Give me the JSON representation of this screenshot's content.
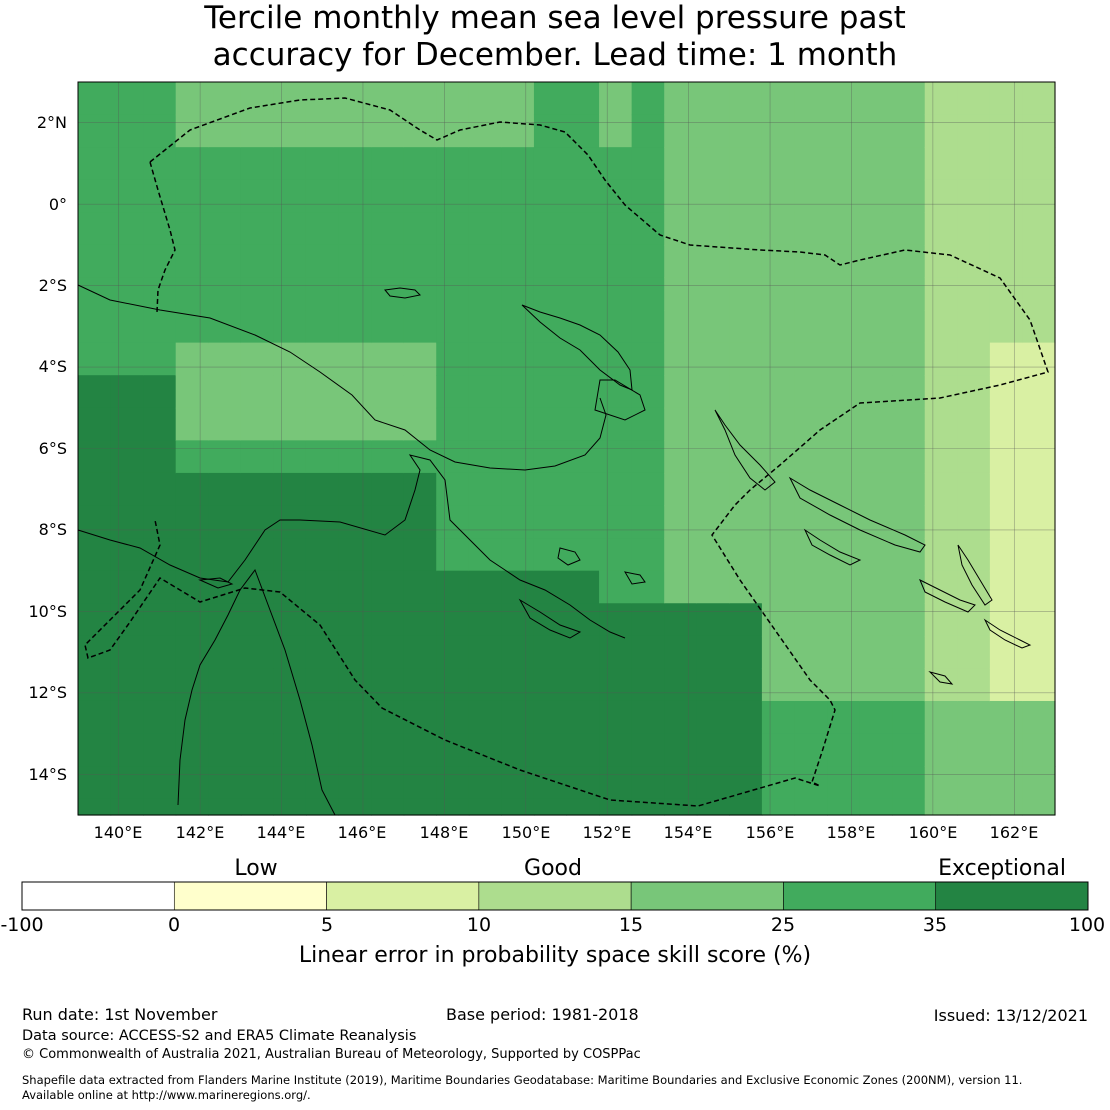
{
  "title": {
    "line1": "Tercile monthly mean sea level pressure past",
    "line2": "accuracy for December. Lead time: 1 month"
  },
  "map": {
    "lon_labels": [
      "140°E",
      "142°E",
      "144°E",
      "146°E",
      "148°E",
      "150°E",
      "152°E",
      "154°E",
      "156°E",
      "158°E",
      "160°E",
      "162°E"
    ],
    "lat_labels": [
      "2°N",
      "0°",
      "2°S",
      "4°S",
      "6°S",
      "8°S",
      "10°S",
      "12°S",
      "14°S"
    ],
    "lon_range": [
      139,
      163
    ],
    "lat_range": [
      -15,
      3
    ]
  },
  "colorbar": {
    "categories": [
      "Low",
      "Good",
      "Exceptional"
    ],
    "ticks": [
      "-100",
      "0",
      "5",
      "10",
      "15",
      "25",
      "35",
      "100"
    ],
    "colors": [
      "#ffffff",
      "#ffffcc",
      "#d9f0a3",
      "#addd8e",
      "#78c679",
      "#41ab5d",
      "#238443"
    ],
    "label": "Linear error in probability space skill score (%)"
  },
  "footer": {
    "run_date": "Run date: 1st November",
    "base_period": "Base period: 1981-2018",
    "issued": "Issued: 13/12/2021",
    "data_source": "Data source: ACCESS-S2 and ERA5 Climate Reanalysis",
    "copyright": "© Commonwealth of Australia 2021, Australian Bureau of Meteorology, Supported by COSPPac",
    "shapefile_line1": "Shapefile data extracted from Flanders Marine Institute (2019), Maritime Boundaries Geodatabase: Maritime Boundaries and Exclusive Economic Zones (200NM), version 11.",
    "shapefile_line2": "Available online at http://www.marineregions.org/."
  }
}
